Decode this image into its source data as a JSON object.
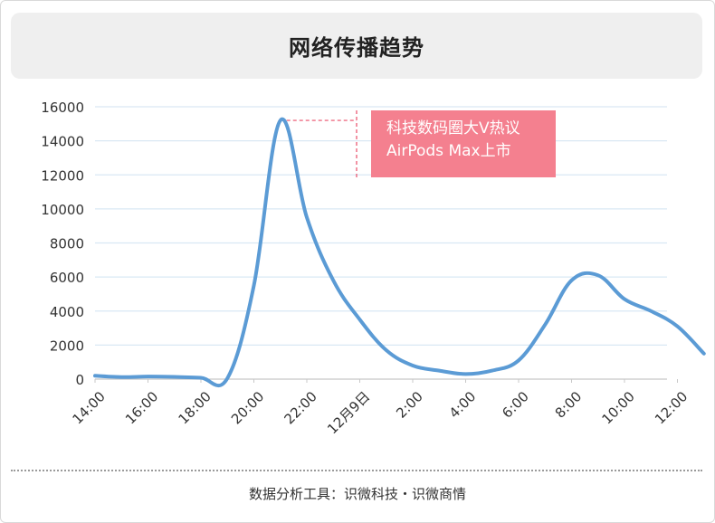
{
  "title": "网络传播趋势",
  "source": "数据分析工具：识微科技・识微商情",
  "annotation": [
    "科技数码圈大V热议",
    "AirPods Max上市"
  ],
  "colors": {
    "line": "#5b9bd5",
    "annotation_bg": "#f4808f",
    "annotation_line": "#e94c68",
    "grid": "#d9e8f4"
  },
  "chart_data": {
    "type": "line",
    "title": "网络传播趋势",
    "x_tick_labels": [
      "14:00",
      "16:00",
      "18:00",
      "20:00",
      "22:00",
      "12月9日",
      "2:00",
      "4:00",
      "6:00",
      "8:00",
      "10:00",
      "12:00"
    ],
    "y_ticks": [
      0,
      2000,
      4000,
      6000,
      8000,
      10000,
      12000,
      14000,
      16000
    ],
    "ylim": [
      0,
      16000
    ],
    "grid": true,
    "series": [
      {
        "x_hours": [
          0,
          1,
          2,
          3,
          4,
          5,
          6,
          7,
          8,
          9,
          10,
          11,
          12,
          13,
          14,
          15,
          16,
          17,
          18,
          19,
          20,
          21,
          22,
          23
        ],
        "values": [
          200,
          120,
          150,
          130,
          80,
          50,
          5500,
          15200,
          9500,
          5800,
          3500,
          1700,
          800,
          500,
          300,
          500,
          1100,
          3200,
          5800,
          6100,
          4700,
          4000,
          3100,
          1500
        ]
      }
    ]
  }
}
